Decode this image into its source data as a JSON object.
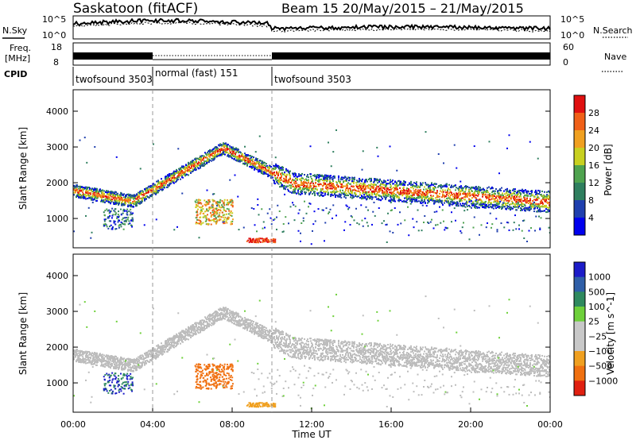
{
  "header": {
    "station": "Saskatoon (fitACF)",
    "beam_date": "Beam 15  20/May/2015 – 21/May/2015"
  },
  "top_panels": {
    "left_labels": {
      "nsky": "N.Sky",
      "freq": "Freq.",
      "mhz": "[MHz]",
      "cpid": "CPID"
    },
    "right_labels": {
      "nsearch": "N.Search",
      "nave": "Nave"
    },
    "noise_ticks_left": [
      "10^5",
      "10^0"
    ],
    "noise_ticks_right": [
      "10^5",
      "10^0"
    ],
    "freq_ticks": [
      "18",
      "8"
    ],
    "nave_ticks": [
      "60",
      "0"
    ],
    "cpid_segments": [
      {
        "label": "twofsound 3503",
        "start_h": 0,
        "end_h": 4
      },
      {
        "label": "normal (fast) 151",
        "start_h": 4,
        "end_h": 10
      },
      {
        "label": "twofsound 3503",
        "start_h": 10,
        "end_h": 24
      }
    ]
  },
  "colors": {
    "power_scale": [
      "#0000ee",
      "#1f3fae",
      "#2f7f5f",
      "#4fa34f",
      "#c8d020",
      "#f0a020",
      "#f06018",
      "#e01010"
    ],
    "velocity_scale": [
      "#1c1cc8",
      "#2f5fa8",
      "#2f8a5f",
      "#6ed03a",
      "#c8c8c8",
      "#c8c8c8",
      "#f0a020",
      "#f07010",
      "#e02010"
    ],
    "gray_scatter": "#bdbdbd"
  },
  "chart_data": [
    {
      "type": "heatmap",
      "name": "Power panel",
      "ylabel": "Slant Range [km]",
      "ylim": [
        180,
        4600
      ],
      "yticks": [
        "1000",
        "2000",
        "3000",
        "4000"
      ],
      "colorbar_label": "Power [dB]",
      "colorbar_ticks": [
        "4",
        "8",
        "12",
        "16",
        "20",
        "24",
        "28"
      ],
      "xlim_h": [
        0,
        24
      ]
    },
    {
      "type": "heatmap",
      "name": "Velocity panel",
      "ylabel": "Slant Range [km]",
      "ylim": [
        180,
        4600
      ],
      "yticks": [
        "1000",
        "2000",
        "3000",
        "4000"
      ],
      "colorbar_label": "Velocity [m s^-1]",
      "colorbar_ticks": [
        "1000",
        "500",
        "100",
        "25",
        "−25",
        "−100",
        "−500",
        "−1000"
      ],
      "xlabel": "Time UT",
      "xticks": [
        "00:00",
        "04:00",
        "08:00",
        "12:00",
        "16:00",
        "20:00",
        "00:00"
      ],
      "xlim_h": [
        0,
        24
      ]
    }
  ]
}
